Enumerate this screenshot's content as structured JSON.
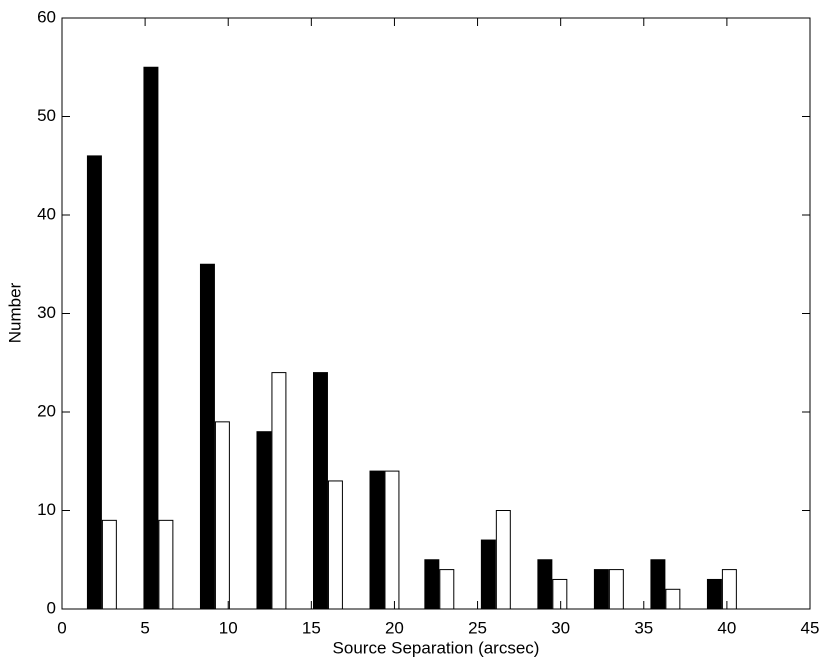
{
  "chart_data": {
    "type": "bar",
    "x_label": "Source Separation (arcsec)",
    "y_label": "Number",
    "x": [
      2.4,
      5.8,
      9.2,
      12.6,
      16.0,
      19.4,
      22.7,
      26.1,
      29.5,
      32.9,
      36.3,
      39.7
    ],
    "series": [
      {
        "color": "#000000",
        "values": [
          46,
          55,
          35,
          18,
          24,
          14,
          5,
          7,
          5,
          4,
          5,
          3
        ]
      },
      {
        "color": "#ffffff",
        "values": [
          9,
          9,
          19,
          24,
          13,
          14,
          4,
          10,
          3,
          4,
          2,
          4
        ]
      }
    ],
    "xlim": [
      0,
      45
    ],
    "xticks": [
      0,
      5,
      10,
      15,
      20,
      25,
      30,
      35,
      40,
      45
    ],
    "ylim": [
      0,
      60
    ],
    "yticks": [
      0,
      10,
      20,
      30,
      40,
      50,
      60
    ]
  }
}
